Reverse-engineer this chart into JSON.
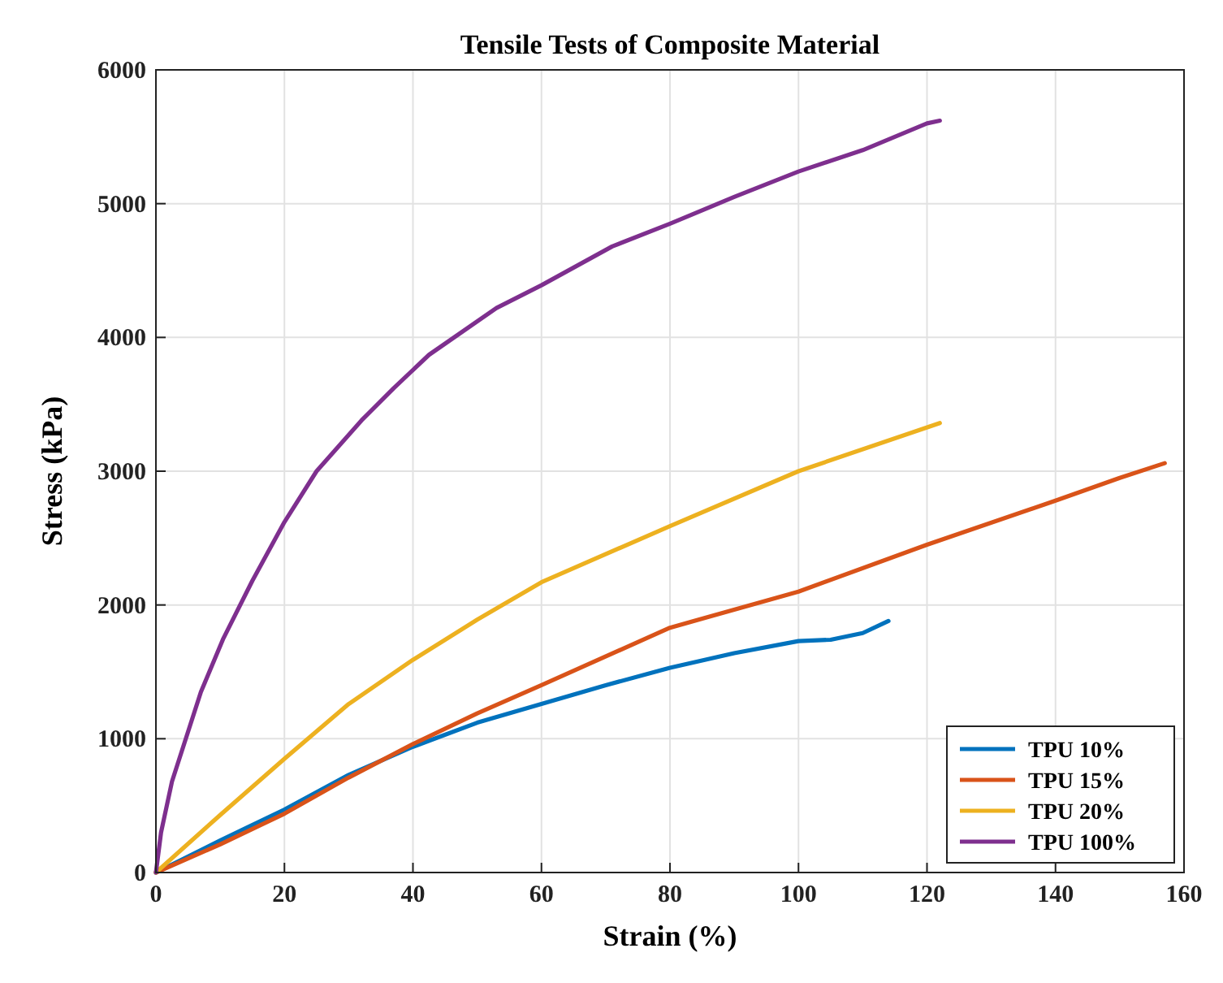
{
  "chart_data": {
    "type": "line",
    "title": "Tensile Tests of Composite Material",
    "xlabel": "Strain (%)",
    "ylabel": "Stress (kPa)",
    "xlim": [
      0,
      160
    ],
    "ylim": [
      0,
      6000
    ],
    "xticks": [
      0,
      20,
      40,
      60,
      80,
      100,
      120,
      140,
      160
    ],
    "yticks": [
      0,
      1000,
      2000,
      3000,
      4000,
      5000,
      6000
    ],
    "grid": true,
    "legend": "bottom right",
    "line_style": "solid",
    "marker": "none",
    "series": [
      {
        "name": "TPU 10%",
        "color": "#0072bd",
        "x": [
          0,
          10,
          20,
          30,
          40,
          50,
          60,
          70,
          80,
          90,
          100,
          105,
          110,
          114
        ],
        "values": [
          0,
          240,
          470,
          730,
          940,
          1120,
          1260,
          1400,
          1530,
          1640,
          1730,
          1740,
          1790,
          1880
        ]
      },
      {
        "name": "TPU 15%",
        "color": "#d95319",
        "x": [
          0,
          10,
          20,
          30,
          40,
          50,
          60,
          80,
          100,
          120,
          140,
          150,
          157
        ],
        "values": [
          0,
          210,
          440,
          710,
          960,
          1190,
          1400,
          1830,
          2100,
          2450,
          2780,
          2950,
          3060
        ]
      },
      {
        "name": "TPU 20%",
        "color": "#edb120",
        "x": [
          0,
          10,
          20,
          30,
          40,
          50,
          60,
          80,
          100,
          122
        ],
        "values": [
          0,
          430,
          850,
          1260,
          1590,
          1890,
          2170,
          2590,
          3000,
          3360
        ]
      },
      {
        "name": "TPU 100%",
        "color": "#7e2f8e",
        "x": [
          0,
          0.8,
          2.5,
          7,
          10.5,
          15,
          20,
          25,
          32,
          37,
          42.5,
          53,
          60,
          71,
          80,
          90,
          100,
          110,
          120,
          122
        ],
        "values": [
          0,
          300,
          680,
          1350,
          1750,
          2180,
          2620,
          3000,
          3380,
          3620,
          3870,
          4220,
          4390,
          4680,
          4850,
          5050,
          5240,
          5400,
          5600,
          5620
        ]
      }
    ]
  }
}
